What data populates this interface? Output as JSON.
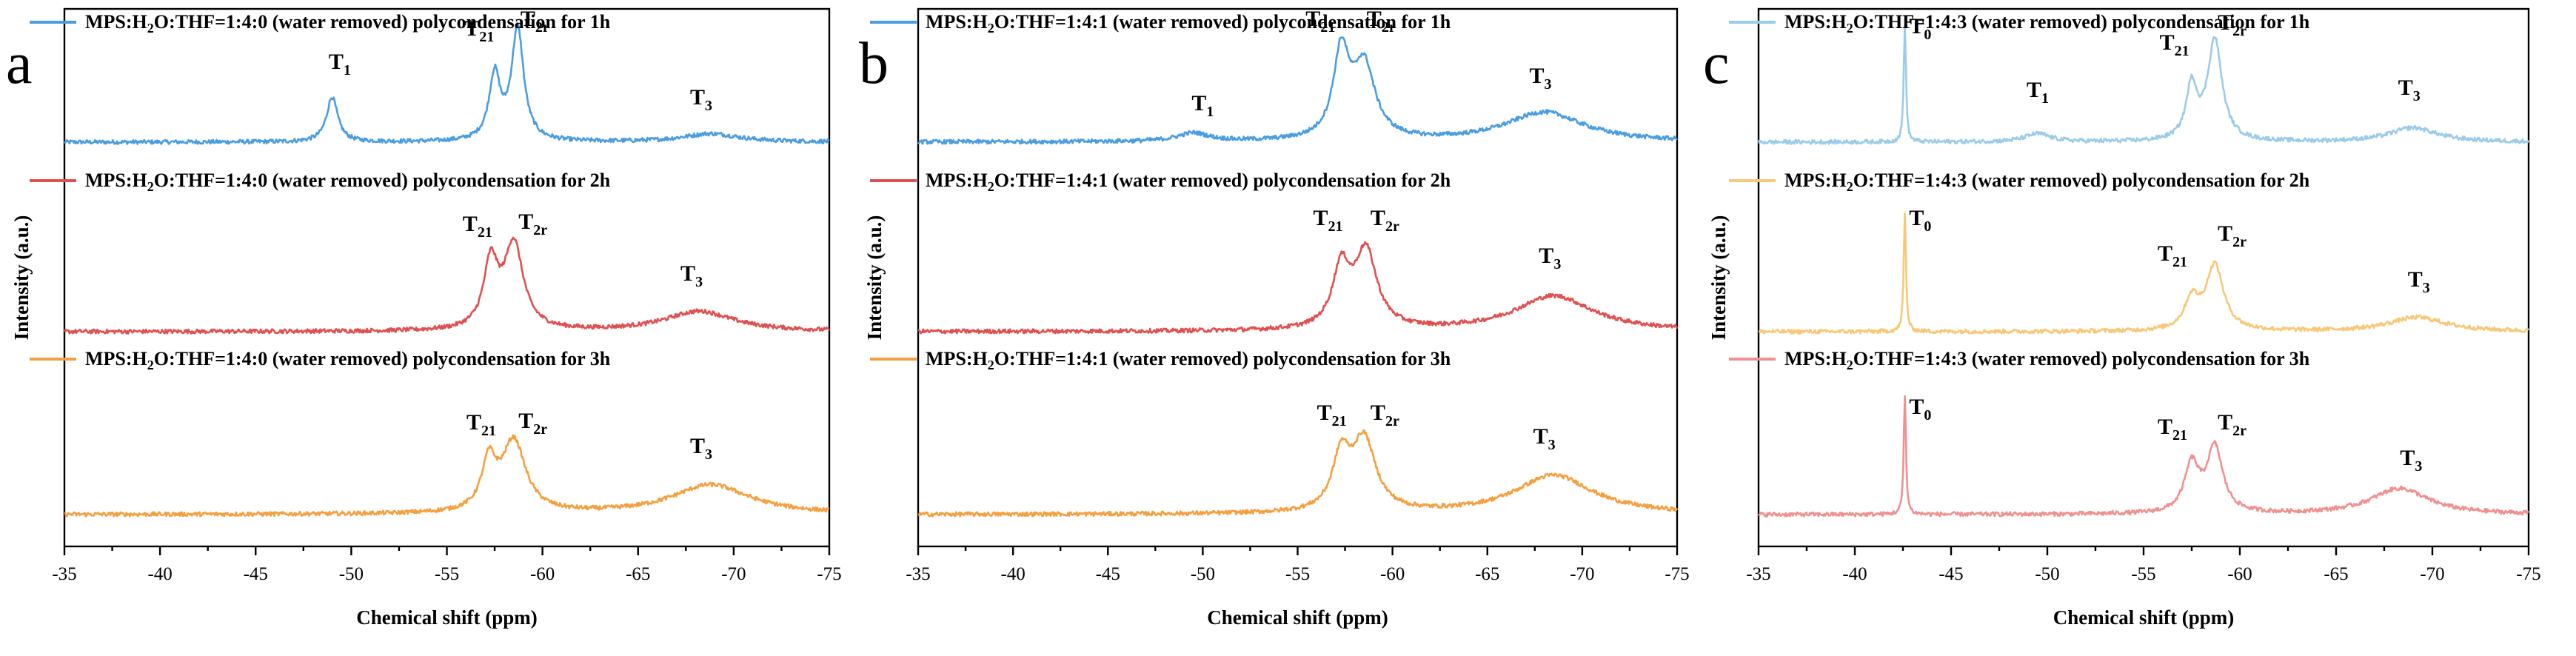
{
  "chart_data": [
    {
      "type": "line",
      "panel_label": "a",
      "xlabel": "Chemical shift (ppm)",
      "ylabel": "Intensity (a.u.)",
      "xlim": [
        -35,
        -75
      ],
      "x_ticks": [
        -35,
        -40,
        -45,
        -50,
        -55,
        -60,
        -65,
        -70,
        -75
      ],
      "legend_placement": "above each trace",
      "series": [
        {
          "name": "MPS:H₂O:THF=1:4:0 (water removed) polycondensation for 1h",
          "label_parts": [
            "MPS:H",
            "2",
            "O:THF=1:4:0 (water removed) polycondensation for 1h"
          ],
          "color": "#4a9de0",
          "offset": 2,
          "peaks": [
            {
              "x": -49.0,
              "h": 0.38,
              "w": 0.35
            },
            {
              "x": -57.5,
              "h": 0.55,
              "w": 0.35
            },
            {
              "x": -58.7,
              "h": 0.95,
              "w": 0.38
            },
            {
              "x": -68.8,
              "h": 0.07,
              "w": 1.8
            }
          ],
          "annotations": [
            {
              "label": "T",
              "sub": "1",
              "x": -49.4,
              "h": 0.62
            },
            {
              "label": "T",
              "sub": "21",
              "x": -56.7,
              "h": 0.9
            },
            {
              "label": "T",
              "sub": "2r",
              "x": -59.6,
              "h": 0.98
            },
            {
              "label": "T",
              "sub": "3",
              "x": -68.3,
              "h": 0.32
            }
          ]
        },
        {
          "name": "MPS:H₂O:THF=1:4:0 (water removed) polycondensation for 2h",
          "label_parts": [
            "MPS:H",
            "2",
            "O:THF=1:4:0 (water removed) polycondensation for 2h"
          ],
          "color": "#e05050",
          "offset": 1,
          "peaks": [
            {
              "x": -57.3,
              "h": 0.55,
              "w": 0.45
            },
            {
              "x": -58.5,
              "h": 0.72,
              "w": 0.6
            },
            {
              "x": -68.2,
              "h": 0.17,
              "w": 2.2
            }
          ],
          "annotations": [
            {
              "label": "T",
              "sub": "21",
              "x": -56.6,
              "h": 0.85
            },
            {
              "label": "T",
              "sub": "2r",
              "x": -59.5,
              "h": 0.87
            },
            {
              "label": "T",
              "sub": "3",
              "x": -67.8,
              "h": 0.43
            }
          ]
        },
        {
          "name": "MPS:H₂O:THF=1:4:0 (water removed) polycondensation for 3h",
          "label_parts": [
            "MPS:H",
            "2",
            "O:THF=1:4:0 (water removed) polycondensation for 3h"
          ],
          "color": "#f5a040",
          "offset": 0,
          "peaks": [
            {
              "x": -57.2,
              "h": 0.4,
              "w": 0.45
            },
            {
              "x": -58.5,
              "h": 0.6,
              "w": 0.75
            },
            {
              "x": -68.8,
              "h": 0.25,
              "w": 2.5
            }
          ],
          "annotations": [
            {
              "label": "T",
              "sub": "21",
              "x": -56.8,
              "h": 0.72
            },
            {
              "label": "T",
              "sub": "2r",
              "x": -59.5,
              "h": 0.73
            },
            {
              "label": "T",
              "sub": "3",
              "x": -68.3,
              "h": 0.52
            }
          ]
        }
      ]
    },
    {
      "type": "line",
      "panel_label": "b",
      "xlabel": "Chemical shift (ppm)",
      "ylabel": "Intensity (a.u.)",
      "xlim": [
        -35,
        -75
      ],
      "x_ticks": [
        -35,
        -40,
        -45,
        -50,
        -55,
        -60,
        -65,
        -70,
        -75
      ],
      "legend_placement": "above each trace",
      "series": [
        {
          "name": "MPS:H₂O:THF=1:4:1 (water removed) polycondensation for 1h",
          "label_parts": [
            "MPS:H",
            "2",
            "O:THF=1:4:1 (water removed) polycondensation for 1h"
          ],
          "color": "#4a9de0",
          "offset": 2,
          "peaks": [
            {
              "x": -49.5,
              "h": 0.07,
              "w": 1.0
            },
            {
              "x": -57.3,
              "h": 0.72,
              "w": 0.5
            },
            {
              "x": -58.5,
              "h": 0.62,
              "w": 0.7
            },
            {
              "x": -68.0,
              "h": 0.25,
              "w": 2.5
            }
          ],
          "annotations": [
            {
              "label": "T",
              "sub": "1",
              "x": -50.0,
              "h": 0.27
            },
            {
              "label": "T",
              "sub": "21",
              "x": -56.2,
              "h": 0.98
            },
            {
              "label": "T",
              "sub": "2r",
              "x": -59.4,
              "h": 0.98
            },
            {
              "label": "T",
              "sub": "3",
              "x": -67.8,
              "h": 0.5
            }
          ]
        },
        {
          "name": "MPS:H₂O:THF=1:4:1 (water removed) polycondensation for 2h",
          "label_parts": [
            "MPS:H",
            "2",
            "O:THF=1:4:1 (water removed) polycondensation for 2h"
          ],
          "color": "#e05050",
          "offset": 1,
          "peaks": [
            {
              "x": -57.3,
              "h": 0.5,
              "w": 0.55
            },
            {
              "x": -58.6,
              "h": 0.65,
              "w": 0.7
            },
            {
              "x": -68.5,
              "h": 0.3,
              "w": 2.5
            }
          ],
          "annotations": [
            {
              "label": "T",
              "sub": "21",
              "x": -56.6,
              "h": 0.9
            },
            {
              "label": "T",
              "sub": "2r",
              "x": -59.6,
              "h": 0.9
            },
            {
              "label": "T",
              "sub": "3",
              "x": -68.3,
              "h": 0.58
            }
          ]
        },
        {
          "name": "MPS:H₂O:THF=1:4:1 (water removed) polycondensation for 3h",
          "label_parts": [
            "MPS:H",
            "2",
            "O:THF=1:4:1 (water removed) polycondensation for 3h"
          ],
          "color": "#f5a040",
          "offset": 0,
          "peaks": [
            {
              "x": -57.3,
              "h": 0.45,
              "w": 0.55
            },
            {
              "x": -58.5,
              "h": 0.6,
              "w": 0.75
            },
            {
              "x": -68.5,
              "h": 0.33,
              "w": 2.5
            }
          ],
          "annotations": [
            {
              "label": "T",
              "sub": "21",
              "x": -56.8,
              "h": 0.8
            },
            {
              "label": "T",
              "sub": "2r",
              "x": -59.6,
              "h": 0.8
            },
            {
              "label": "T",
              "sub": "3",
              "x": -68.0,
              "h": 0.6
            }
          ]
        }
      ]
    },
    {
      "type": "line",
      "panel_label": "c",
      "xlabel": "Chemical shift (ppm)",
      "ylabel": "Intensity (a.u.)",
      "xlim": [
        -35,
        -75
      ],
      "x_ticks": [
        -35,
        -40,
        -45,
        -50,
        -55,
        -60,
        -65,
        -70,
        -75
      ],
      "legend_placement": "above each trace",
      "series": [
        {
          "name": "MPS:H₂O:THF=1:4:3 (water removed) polycondensation for 1h",
          "label_parts": [
            "MPS:H",
            "2",
            "O:THF=1:4:3 (water removed) polycondensation for 1h"
          ],
          "color": "#9ccbe8",
          "offset": 2,
          "peaks": [
            {
              "x": -42.6,
              "h": 1.0,
              "w": 0.07
            },
            {
              "x": -49.5,
              "h": 0.07,
              "w": 0.8
            },
            {
              "x": -57.5,
              "h": 0.45,
              "w": 0.35
            },
            {
              "x": -58.7,
              "h": 0.85,
              "w": 0.45
            },
            {
              "x": -69.0,
              "h": 0.12,
              "w": 1.5
            }
          ],
          "annotations": [
            {
              "label": "T",
              "sub": "0",
              "x": -43.4,
              "h": 0.92
            },
            {
              "label": "T",
              "sub": "1",
              "x": -49.5,
              "h": 0.38
            },
            {
              "label": "T",
              "sub": "21",
              "x": -56.6,
              "h": 0.78
            },
            {
              "label": "T",
              "sub": "2r",
              "x": -59.6,
              "h": 0.95
            },
            {
              "label": "T",
              "sub": "3",
              "x": -68.8,
              "h": 0.4
            }
          ]
        },
        {
          "name": "MPS:H₂O:THF=1:4:3 (water removed) polycondensation for 2h",
          "label_parts": [
            "MPS:H",
            "2",
            "O:THF=1:4:3 (water removed) polycondensation for 2h"
          ],
          "color": "#f8c878",
          "offset": 1,
          "peaks": [
            {
              "x": -42.6,
              "h": 1.0,
              "w": 0.07
            },
            {
              "x": -57.5,
              "h": 0.25,
              "w": 0.45
            },
            {
              "x": -58.7,
              "h": 0.55,
              "w": 0.55
            },
            {
              "x": -69.2,
              "h": 0.12,
              "w": 1.8
            }
          ],
          "annotations": [
            {
              "label": "T",
              "sub": "0",
              "x": -43.4,
              "h": 0.9
            },
            {
              "label": "T",
              "sub": "21",
              "x": -56.5,
              "h": 0.6
            },
            {
              "label": "T",
              "sub": "2r",
              "x": -59.6,
              "h": 0.77
            },
            {
              "label": "T",
              "sub": "3",
              "x": -69.3,
              "h": 0.38
            }
          ]
        },
        {
          "name": "MPS:H₂O:THF=1:4:3 (water removed) polycondensation for 3h",
          "label_parts": [
            "MPS:H",
            "2",
            "O:THF=1:4:3 (water removed) polycondensation for 3h"
          ],
          "color": "#f09090",
          "offset": 0,
          "peaks": [
            {
              "x": -42.6,
              "h": 1.0,
              "w": 0.07
            },
            {
              "x": -57.5,
              "h": 0.4,
              "w": 0.45
            },
            {
              "x": -58.7,
              "h": 0.55,
              "w": 0.5
            },
            {
              "x": -68.3,
              "h": 0.22,
              "w": 1.8
            }
          ],
          "annotations": [
            {
              "label": "T",
              "sub": "0",
              "x": -43.4,
              "h": 0.85
            },
            {
              "label": "T",
              "sub": "21",
              "x": -56.5,
              "h": 0.68
            },
            {
              "label": "T",
              "sub": "2r",
              "x": -59.6,
              "h": 0.72
            },
            {
              "label": "T",
              "sub": "3",
              "x": -68.9,
              "h": 0.42
            }
          ]
        }
      ]
    }
  ]
}
